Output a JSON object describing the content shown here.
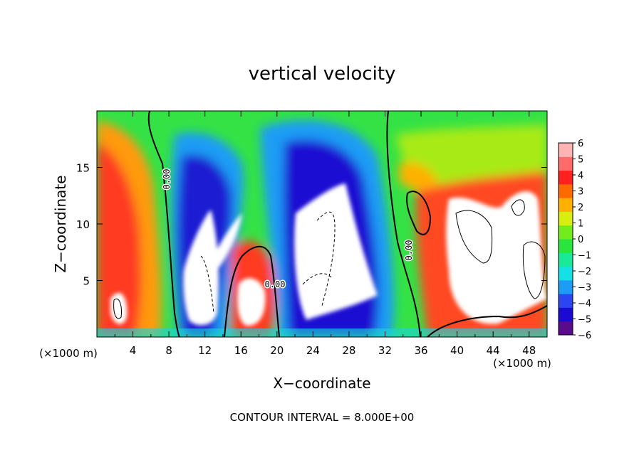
{
  "chart_data": {
    "type": "heatmap",
    "title": "vertical velocity",
    "xlabel": "X−coordinate",
    "ylabel": "Z−coordinate",
    "x_unit_left": "(×1000 m)",
    "x_unit_right": "(×1000 m)",
    "footer": "CONTOUR INTERVAL = 8.000E+00",
    "xlim": [
      0,
      50
    ],
    "ylim": [
      0,
      20
    ],
    "x_ticks": [
      4,
      8,
      12,
      16,
      20,
      24,
      28,
      32,
      36,
      40,
      44,
      48
    ],
    "y_ticks": [
      5,
      10,
      15
    ],
    "x_tick_labels": [
      "4",
      "8",
      "12",
      "16",
      "20",
      "24",
      "28",
      "32",
      "36",
      "40",
      "44",
      "48"
    ],
    "y_tick_labels": [
      "5",
      "10",
      "15"
    ],
    "colorbar": {
      "min": -6,
      "max": 6,
      "tick_labels": [
        "6",
        "5",
        "4",
        "3",
        "2",
        "1",
        "0",
        "−1",
        "−2",
        "−3",
        "−4",
        "−5",
        "−6"
      ],
      "colors": [
        "#5a0a8c",
        "#1a0ad2",
        "#2b45f0",
        "#1c9cf5",
        "#14e0e6",
        "#18ea9a",
        "#2ae63c",
        "#72ec1a",
        "#d6ee10",
        "#ffb000",
        "#ff6a00",
        "#ff2020",
        "#ff6a6a",
        "#ffb4b4"
      ]
    },
    "zero_contour_labels": [
      "0.00",
      "0.00",
      "0.00"
    ],
    "zero_contour_x": [
      9,
      14.5,
      20.5,
      32,
      34.5
    ],
    "features": [
      {
        "kind": "updraft",
        "x": 2,
        "z": 4.5,
        "peak": 8
      },
      {
        "kind": "updraft",
        "x": 13,
        "z": 5.5,
        "peak": 12
      },
      {
        "kind": "updraft",
        "x": 17.5,
        "z": 3,
        "peak": 9
      },
      {
        "kind": "updraft",
        "x": 26,
        "z": 7,
        "peak": 14
      },
      {
        "kind": "updraft",
        "x": 42,
        "z": 7.5,
        "peak": 10
      },
      {
        "kind": "updraft",
        "x": 48,
        "z": 6,
        "peak": 9
      }
    ]
  }
}
